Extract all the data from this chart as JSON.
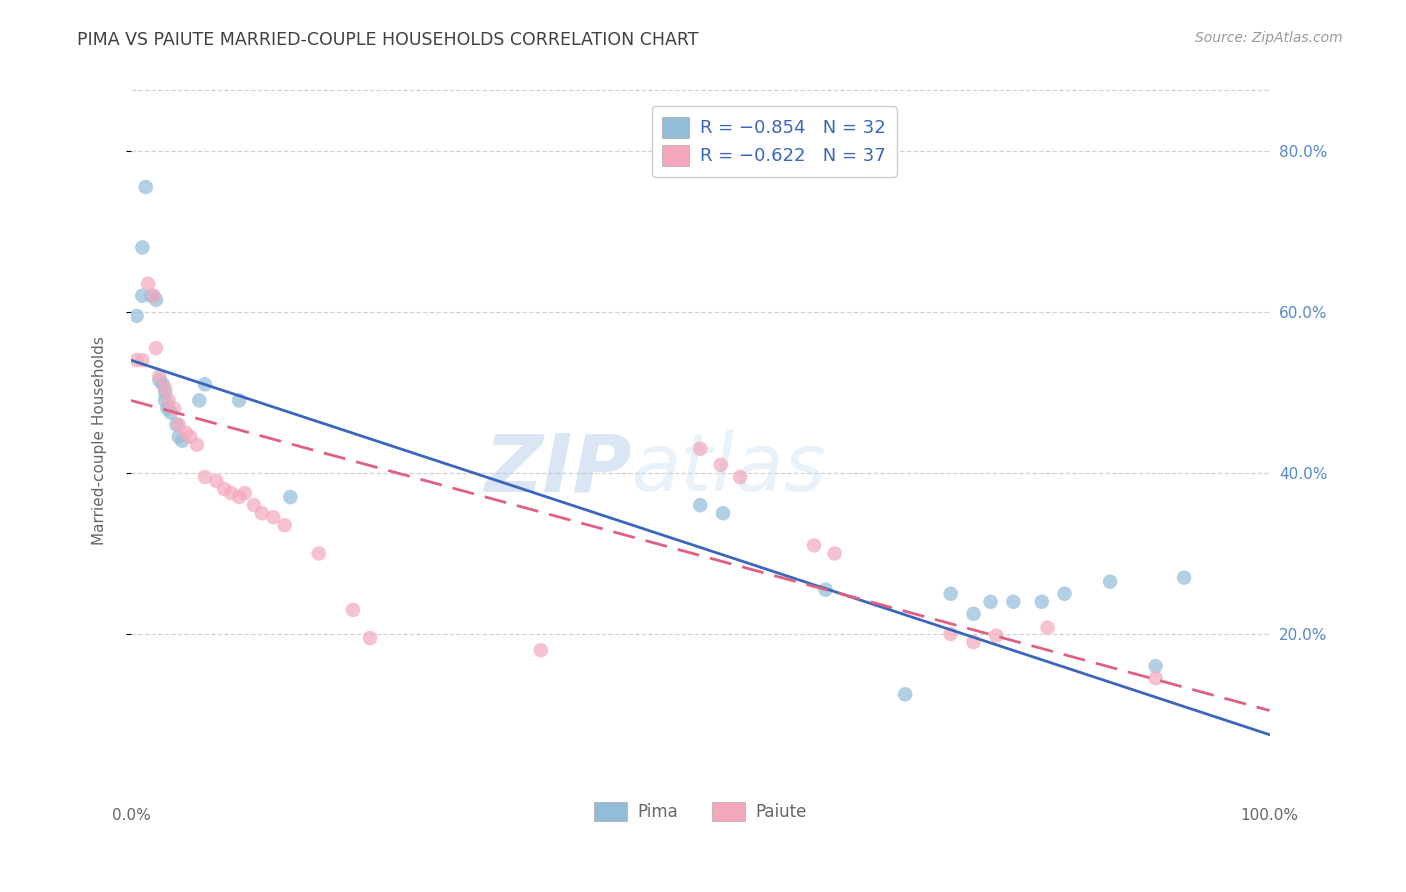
{
  "title": "PIMA VS PAIUTE MARRIED-COUPLE HOUSEHOLDS CORRELATION CHART",
  "source": "Source: ZipAtlas.com",
  "ylabel": "Married-couple Households",
  "right_yticks": [
    "80.0%",
    "60.0%",
    "40.0%",
    "20.0%"
  ],
  "right_ytick_vals": [
    0.8,
    0.6,
    0.4,
    0.2
  ],
  "xlim": [
    0.0,
    1.0
  ],
  "ylim": [
    0.0,
    0.88
  ],
  "watermark_zip": "ZIP",
  "watermark_atlas": "atlas",
  "legend_entry_blue": "R = −0.854   N = 32",
  "legend_entry_pink": "R = −0.622   N = 37",
  "legend_labels": [
    "Pima",
    "Paiute"
  ],
  "blue_scatter": [
    [
      0.005,
      0.595
    ],
    [
      0.01,
      0.68
    ],
    [
      0.013,
      0.755
    ],
    [
      0.018,
      0.62
    ],
    [
      0.022,
      0.615
    ],
    [
      0.025,
      0.515
    ],
    [
      0.028,
      0.51
    ],
    [
      0.03,
      0.5
    ],
    [
      0.03,
      0.49
    ],
    [
      0.032,
      0.48
    ],
    [
      0.035,
      0.475
    ],
    [
      0.04,
      0.46
    ],
    [
      0.042,
      0.445
    ],
    [
      0.045,
      0.44
    ],
    [
      0.06,
      0.49
    ],
    [
      0.065,
      0.51
    ],
    [
      0.01,
      0.62
    ],
    [
      0.095,
      0.49
    ],
    [
      0.14,
      0.37
    ],
    [
      0.5,
      0.36
    ],
    [
      0.52,
      0.35
    ],
    [
      0.61,
      0.255
    ],
    [
      0.68,
      0.125
    ],
    [
      0.72,
      0.25
    ],
    [
      0.74,
      0.225
    ],
    [
      0.755,
      0.24
    ],
    [
      0.775,
      0.24
    ],
    [
      0.8,
      0.24
    ],
    [
      0.82,
      0.25
    ],
    [
      0.86,
      0.265
    ],
    [
      0.9,
      0.16
    ],
    [
      0.925,
      0.27
    ]
  ],
  "pink_scatter": [
    [
      0.005,
      0.54
    ],
    [
      0.01,
      0.54
    ],
    [
      0.015,
      0.635
    ],
    [
      0.02,
      0.62
    ],
    [
      0.022,
      0.555
    ],
    [
      0.025,
      0.52
    ],
    [
      0.03,
      0.505
    ],
    [
      0.033,
      0.49
    ],
    [
      0.038,
      0.48
    ],
    [
      0.042,
      0.46
    ],
    [
      0.048,
      0.45
    ],
    [
      0.052,
      0.445
    ],
    [
      0.058,
      0.435
    ],
    [
      0.065,
      0.395
    ],
    [
      0.075,
      0.39
    ],
    [
      0.082,
      0.38
    ],
    [
      0.088,
      0.375
    ],
    [
      0.095,
      0.37
    ],
    [
      0.1,
      0.375
    ],
    [
      0.108,
      0.36
    ],
    [
      0.115,
      0.35
    ],
    [
      0.125,
      0.345
    ],
    [
      0.135,
      0.335
    ],
    [
      0.165,
      0.3
    ],
    [
      0.195,
      0.23
    ],
    [
      0.21,
      0.195
    ],
    [
      0.36,
      0.18
    ],
    [
      0.5,
      0.43
    ],
    [
      0.518,
      0.41
    ],
    [
      0.535,
      0.395
    ],
    [
      0.6,
      0.31
    ],
    [
      0.618,
      0.3
    ],
    [
      0.72,
      0.2
    ],
    [
      0.74,
      0.19
    ],
    [
      0.76,
      0.198
    ],
    [
      0.805,
      0.208
    ],
    [
      0.9,
      0.145
    ]
  ],
  "blue_line_x": [
    0.0,
    1.0
  ],
  "blue_line_y": [
    0.54,
    0.075
  ],
  "pink_line_x": [
    0.0,
    1.0
  ],
  "pink_line_y": [
    0.49,
    0.105
  ],
  "scatter_size": 110,
  "scatter_alpha": 0.7,
  "blue_color": "#92bcd8",
  "pink_color": "#f4a8bc",
  "line_blue_color": "#3a66bb",
  "line_pink_color": "#e06080",
  "background_color": "#ffffff",
  "grid_color": "#c8c8c8",
  "title_color": "#404040",
  "axis_label_color": "#666666",
  "right_axis_color": "#5588cc",
  "xtick_color": "#666666"
}
